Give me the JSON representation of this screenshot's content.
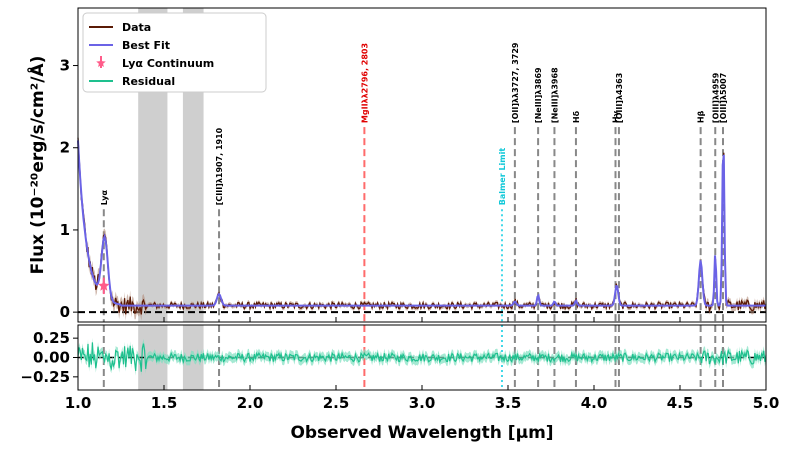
{
  "chart_data": {
    "type": "line",
    "xlabel": "Observed Wavelength [μm]",
    "ylabel": "Flux (10⁻²⁰erg/s/cm²/Å)",
    "xlim": [
      1.0,
      5.0
    ],
    "ylim": [
      -0.12,
      3.7
    ],
    "xticks": [
      1.0,
      1.5,
      2.0,
      2.5,
      3.0,
      3.5,
      4.0,
      4.5,
      5.0
    ],
    "xtick_labels": [
      "1.0",
      "1.5",
      "2.0",
      "2.5",
      "3.0",
      "3.5",
      "4.0",
      "4.5",
      "5.0"
    ],
    "yticks": [
      0,
      1,
      2,
      3
    ],
    "ytick_labels": [
      "0",
      "1",
      "2",
      "3"
    ],
    "residual_ylim": [
      -0.42,
      0.42
    ],
    "residual_yticks": [
      0.25,
      0.0,
      -0.25
    ],
    "residual_ytick_labels": [
      "0.25",
      "0.00",
      "−0.25"
    ],
    "legend": {
      "position": "top-left",
      "entries": [
        {
          "label": "Data",
          "color": "#5a1a05",
          "kind": "line"
        },
        {
          "label": "Best Fit",
          "color": "#6b63e6",
          "kind": "line"
        },
        {
          "label": "Lyα Continuum",
          "color": "#ff5c8a",
          "kind": "marker"
        },
        {
          "label": "Residual",
          "color": "#1ec08e",
          "kind": "line"
        }
      ]
    },
    "masked_regions": [
      [
        1.35,
        1.52
      ],
      [
        1.61,
        1.73
      ]
    ],
    "continuum_point": {
      "x": 1.15,
      "y": 0.32,
      "err": 0.1
    },
    "continuum_level": 0.08,
    "lines": [
      {
        "label": "Lyα",
        "x": 1.15,
        "color": "#888888",
        "style": "dashed",
        "label_y": 1.3,
        "label_color": "#000000"
      },
      {
        "label": "[CIII]λ1907, 1910",
        "x": 1.82,
        "color": "#888888",
        "style": "dashed",
        "label_y": 1.3,
        "label_color": "#000000"
      },
      {
        "label": "MgIIλλ2796, 2803",
        "x": 2.665,
        "color": "#ff6b6b",
        "style": "dashed",
        "label_y": 2.3,
        "label_color": "#e00000"
      },
      {
        "label": "Balmer Limit",
        "x": 3.465,
        "color": "#40d8e8",
        "style": "dotted",
        "label_y": 1.3,
        "label_color": "#10c8d8"
      },
      {
        "label": "[OII]λλ3727, 3729",
        "x": 3.54,
        "color": "#888888",
        "style": "dashed",
        "label_y": 2.3,
        "label_color": "#000000"
      },
      {
        "label": "[NeIII]λ3869",
        "x": 3.675,
        "color": "#888888",
        "style": "dashed",
        "label_y": 2.3,
        "label_color": "#000000"
      },
      {
        "label": "[NeIII]λ3968",
        "x": 3.77,
        "color": "#888888",
        "style": "dashed",
        "label_y": 2.3,
        "label_color": "#000000"
      },
      {
        "label": "Hδ",
        "x": 3.895,
        "color": "#888888",
        "style": "dashed",
        "label_y": 2.3,
        "label_color": "#000000"
      },
      {
        "label": "Hγ",
        "x": 4.125,
        "color": "#888888",
        "style": "dashed",
        "label_y": 2.3,
        "label_color": "#000000"
      },
      {
        "label": "[OIII]λ4363",
        "x": 4.145,
        "color": "#888888",
        "style": "dashed",
        "label_y": 2.3,
        "label_color": "#000000"
      },
      {
        "label": "Hβ",
        "x": 4.62,
        "color": "#888888",
        "style": "dashed",
        "label_y": 2.3,
        "label_color": "#000000"
      },
      {
        "label": "[OIII]λ4959",
        "x": 4.705,
        "color": "#888888",
        "style": "dashed",
        "label_y": 2.3,
        "label_color": "#000000"
      },
      {
        "label": "[OIII]λ5007",
        "x": 4.75,
        "color": "#888888",
        "style": "dashed",
        "label_y": 2.3,
        "label_color": "#000000"
      }
    ],
    "fit_peaks": [
      {
        "x": 1.155,
        "amp": 0.75,
        "sigma": 0.018
      },
      {
        "x": 1.82,
        "amp": 0.14,
        "sigma": 0.012
      },
      {
        "x": 3.54,
        "amp": 0.05,
        "sigma": 0.008
      },
      {
        "x": 3.675,
        "amp": 0.13,
        "sigma": 0.006
      },
      {
        "x": 3.77,
        "amp": 0.05,
        "sigma": 0.006
      },
      {
        "x": 3.895,
        "amp": 0.06,
        "sigma": 0.006
      },
      {
        "x": 4.132,
        "amp": 0.25,
        "sigma": 0.009
      },
      {
        "x": 4.62,
        "amp": 0.55,
        "sigma": 0.01
      },
      {
        "x": 4.705,
        "amp": 0.65,
        "sigma": 0.005
      },
      {
        "x": 4.752,
        "amp": 2.05,
        "sigma": 0.006
      }
    ]
  }
}
